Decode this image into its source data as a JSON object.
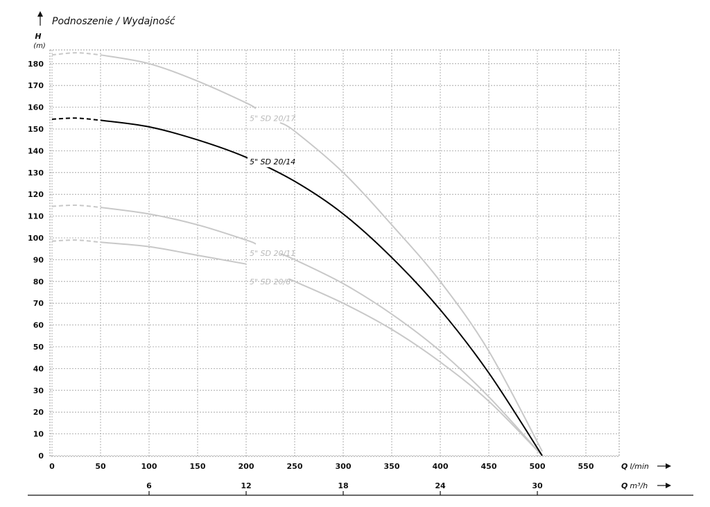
{
  "chart_data": {
    "type": "line",
    "title": "Podnoszenie / Wydajność",
    "ylabel": "H",
    "yunit": "(m)",
    "xlabel_symbol": "Q",
    "xlabel_unit": "l/min",
    "x2label_symbol": "Q",
    "x2label_unit": "m³/h",
    "xlim": [
      0,
      585
    ],
    "ylim": [
      0,
      185
    ],
    "x_ticks": [
      "0",
      "50",
      "100",
      "150",
      "200",
      "250",
      "300",
      "350",
      "400",
      "450",
      "500",
      "550"
    ],
    "y_ticks": [
      "0",
      "10",
      "20",
      "30",
      "40",
      "50",
      "60",
      "70",
      "80",
      "90",
      "100",
      "110",
      "120",
      "130",
      "140",
      "150",
      "160",
      "170",
      "180"
    ],
    "x2_ticks": [
      {
        "label": "6",
        "lmin": 100
      },
      {
        "label": "12",
        "lmin": 200
      },
      {
        "label": "18",
        "lmin": 300
      },
      {
        "label": "24",
        "lmin": 400
      },
      {
        "label": "30",
        "lmin": 500
      }
    ],
    "grid": true,
    "series": [
      {
        "name": "5\" SD 20/17",
        "color": "#c8c8c8",
        "highlight": false,
        "dashed_until": 50,
        "x": [
          0,
          25,
          50,
          100,
          150,
          200,
          250,
          300,
          350,
          400,
          450,
          505
        ],
        "y": [
          184,
          185,
          184,
          180,
          172,
          162,
          149,
          130,
          106,
          80,
          48,
          2
        ],
        "label_at": [
          200,
          155
        ],
        "gap": [
          210,
          235
        ]
      },
      {
        "name": "5\" SD 20/14",
        "color": "#000000",
        "highlight": true,
        "dashed_until": 50,
        "x": [
          0,
          25,
          50,
          100,
          150,
          200,
          250,
          300,
          350,
          400,
          450,
          505
        ],
        "y": [
          154.5,
          155,
          154,
          151,
          145,
          137,
          126,
          111,
          91,
          67,
          38,
          0
        ],
        "label_at": [
          200,
          135
        ],
        "gap": [
          200,
          200
        ]
      },
      {
        "name": "5\" SD 20/11",
        "color": "#c8c8c8",
        "highlight": false,
        "dashed_until": 50,
        "x": [
          0,
          25,
          50,
          100,
          150,
          200,
          250,
          300,
          350,
          400,
          450,
          505
        ],
        "y": [
          114.5,
          115,
          114,
          111,
          106,
          99,
          90,
          79,
          65,
          48,
          27,
          0
        ],
        "label_at": [
          200,
          93
        ],
        "gap": [
          210,
          235
        ]
      },
      {
        "name": "5\" SD 20/8",
        "color": "#c8c8c8",
        "highlight": false,
        "dashed_until": 50,
        "x": [
          0,
          25,
          50,
          100,
          150,
          200,
          250,
          300,
          350,
          400,
          450,
          505
        ],
        "y": [
          98.5,
          99,
          98,
          96,
          92,
          88,
          80,
          70,
          58,
          43,
          25,
          0
        ],
        "label_at": [
          200,
          80
        ],
        "gap": [
          200,
          245
        ]
      }
    ]
  }
}
